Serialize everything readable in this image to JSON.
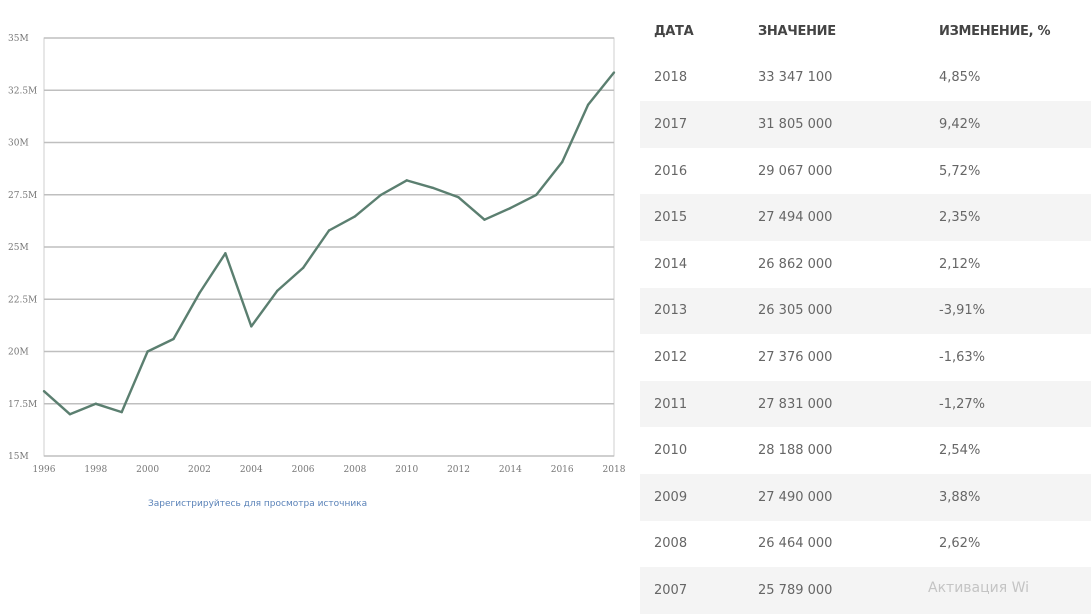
{
  "chart_data": {
    "type": "line",
    "x": [
      1996,
      1997,
      1998,
      1999,
      2000,
      2001,
      2002,
      2003,
      2004,
      2005,
      2006,
      2007,
      2008,
      2009,
      2010,
      2011,
      2012,
      2013,
      2014,
      2015,
      2016,
      2017,
      2018
    ],
    "series": [
      {
        "values": [
          18100000,
          17000000,
          17500000,
          17100000,
          20000000,
          20600000,
          22800000,
          24700000,
          21200000,
          22900000,
          24000000,
          25789000,
          26464000,
          27490000,
          28188000,
          27831000,
          27376000,
          26305000,
          26862000,
          27494000,
          29067000,
          31805000,
          33347100
        ],
        "color": "#5b7f70"
      }
    ],
    "ylim": [
      15000000,
      35000000
    ],
    "y_ticks": [
      {
        "value": 35000000,
        "label": "35M"
      },
      {
        "value": 32500000,
        "label": "32.5M"
      },
      {
        "value": 30000000,
        "label": "30M"
      },
      {
        "value": 27500000,
        "label": "27.5M"
      },
      {
        "value": 25000000,
        "label": "25M"
      },
      {
        "value": 22500000,
        "label": "22.5M"
      },
      {
        "value": 20000000,
        "label": "20M"
      },
      {
        "value": 17500000,
        "label": "17.5M"
      },
      {
        "value": 15000000,
        "label": "15M"
      }
    ],
    "x_ticks": [
      "1996",
      "1998",
      "2000",
      "2002",
      "2004",
      "2006",
      "2008",
      "2010",
      "2012",
      "2014",
      "2016",
      "2018"
    ],
    "grid": true,
    "title": "",
    "xlabel": "",
    "ylabel": ""
  },
  "source_link": "Зарегистрируйтесь для просмотра источника",
  "table": {
    "headers": [
      "ДАТА",
      "ЗНАЧЕНИЕ",
      "ИЗМЕНЕНИЕ, %"
    ],
    "rows": [
      [
        "2018",
        "33 347 100",
        "4,85%"
      ],
      [
        "2017",
        "31 805 000",
        "9,42%"
      ],
      [
        "2016",
        "29 067 000",
        "5,72%"
      ],
      [
        "2015",
        "27 494 000",
        "2,35%"
      ],
      [
        "2014",
        "26 862 000",
        "2,12%"
      ],
      [
        "2013",
        "26 305 000",
        "-3,91%"
      ],
      [
        "2012",
        "27 376 000",
        "-1,63%"
      ],
      [
        "2011",
        "27 831 000",
        "-1,27%"
      ],
      [
        "2010",
        "28 188 000",
        "2,54%"
      ],
      [
        "2009",
        "27 490 000",
        "3,88%"
      ],
      [
        "2008",
        "26 464 000",
        "2,62%"
      ],
      [
        "2007",
        "25 789 000",
        ""
      ]
    ]
  },
  "watermark": "Активация Wi",
  "colors": {
    "line": "#5b7f70",
    "grid": "#bfbfbf",
    "row_alt": "#f4f4f4"
  }
}
